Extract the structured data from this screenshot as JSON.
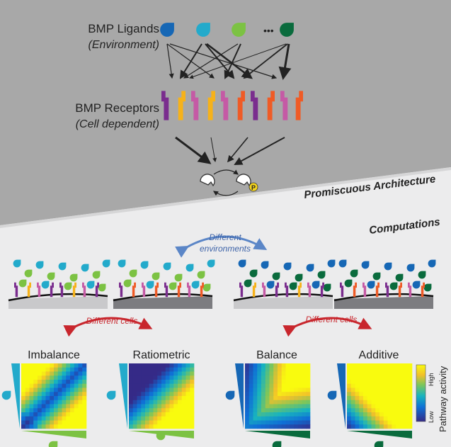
{
  "labels": {
    "ligands_title": "BMP Ligands",
    "ligands_sub": "(Environment)",
    "receptors_title": "BMP Receptors",
    "receptors_sub": "(Cell dependent)",
    "ellipsis": "•••",
    "phospho": "P",
    "promiscuous": "Promiscuous Architecture",
    "computations": "Computations",
    "diff_env_1": "Different",
    "diff_env_2": "environments",
    "diff_cells_left": "Different cells",
    "diff_cells_right": "Different cells"
  },
  "panels": [
    {
      "title": "Imbalance"
    },
    {
      "title": "Ratiometric"
    },
    {
      "title": "Balance"
    },
    {
      "title": "Additive"
    }
  ],
  "colorbar": {
    "high": "High",
    "low": "Low",
    "label": "Pathway activity"
  },
  "colors": {
    "top_bg": "#a8a8a8",
    "bottom_bg": "#ececed",
    "ligand_blue": "#1667b5",
    "ligand_cyan": "#23aacb",
    "ligand_green": "#7cc243",
    "ligand_dark_green": "#0a6b3d",
    "receptor_purple": "#7a2d8e",
    "receptor_yellow": "#f6b21a",
    "receptor_pink": "#c55aa5",
    "receptor_orange": "#ef5b26",
    "env_arrow": "#5b86c7",
    "cells_arrow": "#c8262d"
  }
}
